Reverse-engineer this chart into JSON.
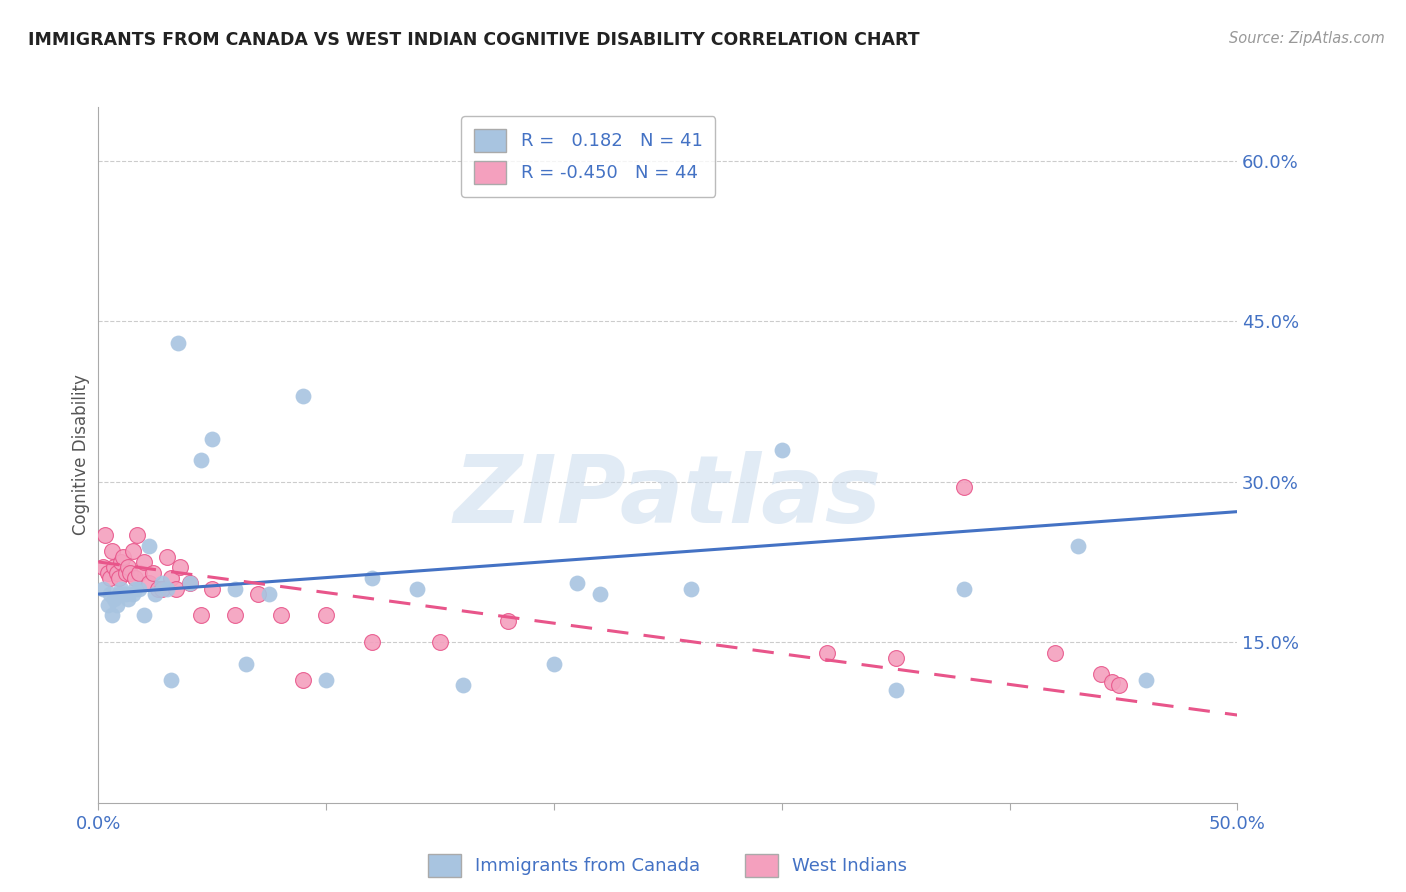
{
  "title": "IMMIGRANTS FROM CANADA VS WEST INDIAN COGNITIVE DISABILITY CORRELATION CHART",
  "source": "Source: ZipAtlas.com",
  "xlabel_canada": "Immigrants from Canada",
  "xlabel_westindians": "West Indians",
  "ylabel": "Cognitive Disability",
  "xlim": [
    0.0,
    0.5
  ],
  "ylim": [
    0.0,
    0.65
  ],
  "x_ticks": [
    0.0,
    0.1,
    0.2,
    0.3,
    0.4,
    0.5
  ],
  "x_tick_labels": [
    "0.0%",
    "",
    "",
    "",
    "",
    "50.0%"
  ],
  "y_ticks": [
    0.15,
    0.3,
    0.45,
    0.6
  ],
  "y_tick_labels": [
    "15.0%",
    "30.0%",
    "45.0%",
    "60.0%"
  ],
  "canada_R": 0.182,
  "canada_N": 41,
  "westindian_R": -0.45,
  "westindian_N": 44,
  "canada_color": "#a8c4e0",
  "canada_line_color": "#4472c4",
  "westindian_color": "#f4a0be",
  "westindian_line_color": "#e8558a",
  "background_color": "#ffffff",
  "grid_color": "#cccccc",
  "title_color": "#222222",
  "axis_label_color": "#4472c4",
  "watermark": "ZIPatlas",
  "canada_x": [
    0.002,
    0.004,
    0.005,
    0.006,
    0.007,
    0.008,
    0.009,
    0.01,
    0.011,
    0.012,
    0.013,
    0.015,
    0.016,
    0.018,
    0.02,
    0.022,
    0.025,
    0.028,
    0.03,
    0.032,
    0.035,
    0.04,
    0.045,
    0.05,
    0.06,
    0.065,
    0.075,
    0.09,
    0.1,
    0.12,
    0.14,
    0.16,
    0.2,
    0.21,
    0.22,
    0.26,
    0.3,
    0.35,
    0.38,
    0.43,
    0.46
  ],
  "canada_y": [
    0.2,
    0.185,
    0.195,
    0.175,
    0.19,
    0.185,
    0.195,
    0.2,
    0.195,
    0.195,
    0.19,
    0.195,
    0.2,
    0.2,
    0.175,
    0.24,
    0.195,
    0.205,
    0.2,
    0.115,
    0.43,
    0.205,
    0.32,
    0.34,
    0.2,
    0.13,
    0.195,
    0.38,
    0.115,
    0.21,
    0.2,
    0.11,
    0.13,
    0.205,
    0.195,
    0.2,
    0.33,
    0.105,
    0.2,
    0.24,
    0.115
  ],
  "westindian_x": [
    0.002,
    0.003,
    0.004,
    0.005,
    0.006,
    0.007,
    0.008,
    0.009,
    0.01,
    0.011,
    0.012,
    0.013,
    0.014,
    0.015,
    0.016,
    0.017,
    0.018,
    0.02,
    0.022,
    0.024,
    0.026,
    0.028,
    0.03,
    0.032,
    0.034,
    0.036,
    0.04,
    0.045,
    0.05,
    0.06,
    0.07,
    0.08,
    0.09,
    0.1,
    0.12,
    0.15,
    0.18,
    0.32,
    0.35,
    0.38,
    0.42,
    0.44,
    0.445,
    0.448
  ],
  "westindian_y": [
    0.22,
    0.25,
    0.215,
    0.21,
    0.235,
    0.22,
    0.215,
    0.21,
    0.225,
    0.23,
    0.215,
    0.22,
    0.215,
    0.235,
    0.21,
    0.25,
    0.215,
    0.225,
    0.205,
    0.215,
    0.2,
    0.2,
    0.23,
    0.21,
    0.2,
    0.22,
    0.205,
    0.175,
    0.2,
    0.175,
    0.195,
    0.175,
    0.115,
    0.175,
    0.15,
    0.15,
    0.17,
    0.14,
    0.135,
    0.295,
    0.14,
    0.12,
    0.113,
    0.11
  ],
  "canada_line_x0": 0.0,
  "canada_line_y0": 0.195,
  "canada_line_x1": 0.5,
  "canada_line_y1": 0.272,
  "west_line_x0": 0.0,
  "west_line_y0": 0.225,
  "west_line_x1": 0.5,
  "west_line_y1": 0.082
}
